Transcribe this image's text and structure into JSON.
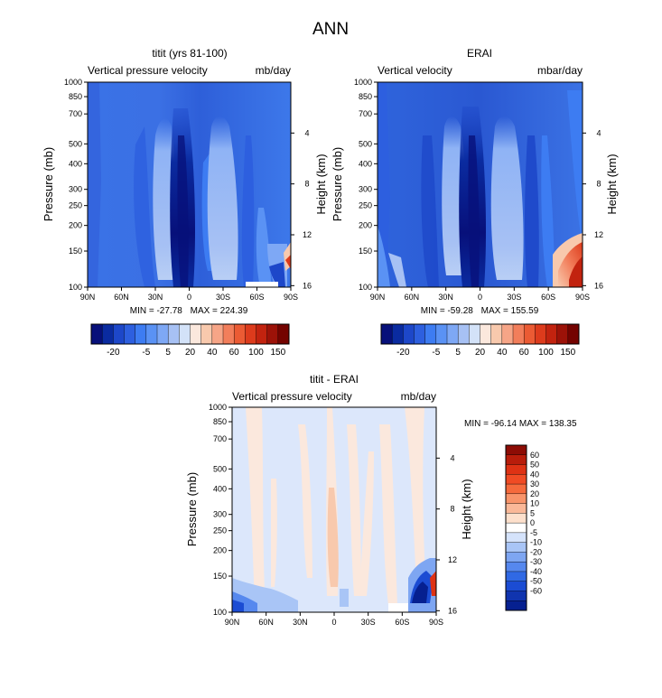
{
  "page_title": "ANN",
  "chart_data": [
    {
      "type": "heatmap",
      "title": "titit (yrs 81-100)",
      "variable": "Vertical pressure velocity",
      "units": "mb/day",
      "ylabel": "Pressure (mb)",
      "y2label": "Height (km)",
      "x_ticks": [
        "90N",
        "60N",
        "30N",
        "0",
        "30S",
        "60S",
        "90S"
      ],
      "x_values": [
        90,
        60,
        30,
        0,
        -30,
        -60,
        -90
      ],
      "y_ticks": [
        100,
        150,
        200,
        250,
        300,
        400,
        500,
        700,
        850,
        1000
      ],
      "y2_ticks": [
        16,
        12,
        8,
        4
      ],
      "y_scale": "log",
      "ylim": [
        1000,
        100
      ],
      "min": -27.78,
      "max": 224.39,
      "min_label": "MIN = -27.78",
      "max_label": "MAX = 224.39",
      "colorbar": {
        "orientation": "horizontal",
        "levels": [
          -30,
          -25,
          -20,
          -15,
          -10,
          -5,
          -2,
          0,
          2,
          5,
          10,
          20,
          30,
          40,
          50,
          60,
          80,
          100,
          125,
          150
        ],
        "labels": [
          "-20",
          "-5",
          "5",
          "20",
          "40",
          "60",
          "100",
          "150"
        ],
        "colors": [
          "#07107a",
          "#0a2ba0",
          "#1d47c9",
          "#2d5fdf",
          "#3d7cf2",
          "#5a92f4",
          "#7ea8f5",
          "#a7c1f4",
          "#d3e2f8",
          "#fbe8dd",
          "#f8c9ad",
          "#f6a587",
          "#f27e5b",
          "#eb5b34",
          "#dd3b1c",
          "#c2230f",
          "#9c1208",
          "#740300"
        ]
      }
    },
    {
      "type": "heatmap",
      "title": "ERAI",
      "variable": "Vertical velocity",
      "units": "mbar/day",
      "ylabel": "Pressure (mb)",
      "y2label": "Height (km)",
      "x_ticks": [
        "90N",
        "60N",
        "30N",
        "0",
        "30S",
        "60S",
        "90S"
      ],
      "x_values": [
        90,
        60,
        30,
        0,
        -30,
        -60,
        -90
      ],
      "y_ticks": [
        100,
        150,
        200,
        250,
        300,
        400,
        500,
        700,
        850,
        1000
      ],
      "y2_ticks": [
        16,
        12,
        8,
        4
      ],
      "y_scale": "log",
      "ylim": [
        1000,
        100
      ],
      "min": -59.28,
      "max": 155.59,
      "min_label": "MIN = -59.28",
      "max_label": "MAX = 155.59",
      "colorbar": {
        "orientation": "horizontal",
        "labels": [
          "-20",
          "-5",
          "5",
          "20",
          "40",
          "60",
          "100",
          "150"
        ]
      }
    },
    {
      "type": "heatmap",
      "title": "titit - ERAI",
      "variable": "Vertical pressure velocity",
      "units": "mb/day",
      "ylabel": "Pressure (mb)",
      "y2label": "Height (km)",
      "x_ticks": [
        "90N",
        "60N",
        "30N",
        "0",
        "30S",
        "60S",
        "90S"
      ],
      "x_values": [
        90,
        60,
        30,
        0,
        -30,
        -60,
        -90
      ],
      "y_ticks": [
        100,
        150,
        200,
        250,
        300,
        400,
        500,
        700,
        850,
        1000
      ],
      "y2_ticks": [
        16,
        12,
        8,
        4
      ],
      "y_scale": "log",
      "ylim": [
        1000,
        100
      ],
      "min": -96.14,
      "max": 138.35,
      "min_max_label": "MIN = -96.14  MAX = 138.35",
      "colorbar": {
        "orientation": "vertical",
        "labels": [
          "60",
          "50",
          "40",
          "30",
          "20",
          "10",
          "5",
          "0",
          "-5",
          "-10",
          "-20",
          "-30",
          "-40",
          "-50",
          "-60"
        ],
        "colors": [
          "#8d0c05",
          "#b81d0b",
          "#de3214",
          "#f04b24",
          "#f56a3c",
          "#f8946a",
          "#fab898",
          "#fde0cc",
          "#ffffff",
          "#d5e3fb",
          "#a9c5f6",
          "#7ea6f2",
          "#5688ee",
          "#3069e4",
          "#1b4cd3",
          "#1034af",
          "#062090"
        ]
      }
    }
  ]
}
